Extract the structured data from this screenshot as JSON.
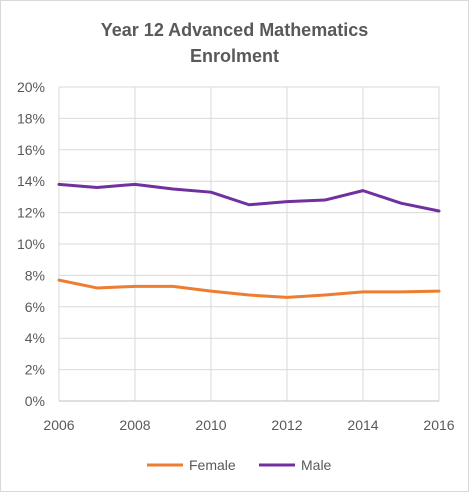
{
  "chart_data": {
    "type": "line",
    "title_lines": [
      "Year 12 Advanced Mathematics",
      "Enrolment"
    ],
    "xlabel": "",
    "ylabel": "",
    "x": [
      2006,
      2007,
      2008,
      2009,
      2010,
      2011,
      2012,
      2013,
      2014,
      2015,
      2016
    ],
    "xlim": [
      2006,
      2016
    ],
    "xticks": [
      "2006",
      "2008",
      "2010",
      "2012",
      "2014",
      "2016"
    ],
    "ylim": [
      0,
      20
    ],
    "yticks": [
      "0%",
      "2%",
      "4%",
      "6%",
      "8%",
      "10%",
      "12%",
      "14%",
      "16%",
      "18%",
      "20%"
    ],
    "grid": true,
    "legend_position": "bottom",
    "series": [
      {
        "name": "Female",
        "color": "#ed7d31",
        "values": [
          7.7,
          7.2,
          7.3,
          7.3,
          7.0,
          6.75,
          6.6,
          6.75,
          6.95,
          6.95,
          7.0
        ]
      },
      {
        "name": "Male",
        "color": "#7030a0",
        "values": [
          13.8,
          13.6,
          13.8,
          13.5,
          13.3,
          12.5,
          12.7,
          12.8,
          13.4,
          12.6,
          12.1
        ]
      }
    ]
  }
}
